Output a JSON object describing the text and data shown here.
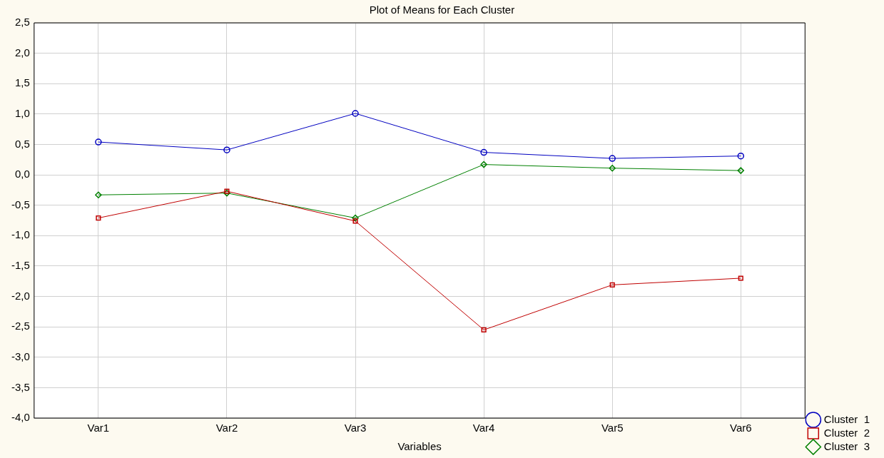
{
  "chart_data": {
    "type": "line",
    "title": "Plot of Means for Each Cluster",
    "xlabel": "Variables",
    "categories": [
      "Var1",
      "Var2",
      "Var3",
      "Var4",
      "Var5",
      "Var6"
    ],
    "series": [
      {
        "name": "Cluster  1",
        "color": "#0000c0",
        "marker": "circle",
        "values": [
          0.54,
          0.41,
          1.01,
          0.37,
          0.27,
          0.31
        ]
      },
      {
        "name": "Cluster  2",
        "color": "#c00000",
        "marker": "square",
        "values": [
          -0.71,
          -0.27,
          -0.76,
          -2.55,
          -1.81,
          -1.7
        ]
      },
      {
        "name": "Cluster  3",
        "color": "#008000",
        "marker": "diamond",
        "values": [
          -0.33,
          -0.3,
          -0.71,
          0.17,
          0.11,
          0.07
        ]
      }
    ],
    "ylim": [
      -4,
      2.5
    ],
    "yticks": [
      {
        "value": -4,
        "label": "-4,0"
      },
      {
        "value": -3.5,
        "label": "-3,5"
      },
      {
        "value": -3,
        "label": "-3,0"
      },
      {
        "value": -2.5,
        "label": "-2,5"
      },
      {
        "value": -2,
        "label": "-2,0"
      },
      {
        "value": -1.5,
        "label": "-1,5"
      },
      {
        "value": -1,
        "label": "-1,0"
      },
      {
        "value": -0.5,
        "label": "-0,5"
      },
      {
        "value": 0,
        "label": "0,0"
      },
      {
        "value": 0.5,
        "label": "0,5"
      },
      {
        "value": 1,
        "label": "1,0"
      },
      {
        "value": 1.5,
        "label": "1,5"
      },
      {
        "value": 2,
        "label": "2,0"
      },
      {
        "value": 2.5,
        "label": "2,5"
      }
    ],
    "grid": true,
    "legend": "bottom right",
    "line_style": "solid"
  }
}
